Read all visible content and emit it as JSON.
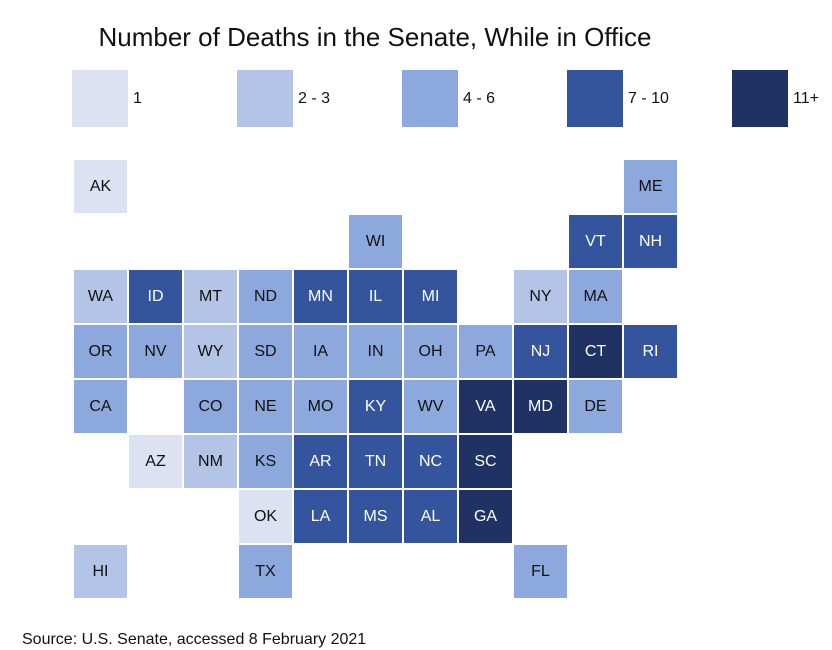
{
  "title": "Number of Deaths in the Senate, While in Office",
  "source": "Source: U.S. Senate, accessed 8 February 2021",
  "legend": [
    {
      "label": "1",
      "color": "#dde2f3"
    },
    {
      "label": "2 - 3",
      "color": "#b3c4e6"
    },
    {
      "label": "4 - 6",
      "color": "#8da8dc"
    },
    {
      "label": "7 - 10",
      "color": "#34559e"
    },
    {
      "label": "11+",
      "color": "#1f3263"
    }
  ],
  "states": [
    {
      "abbr": "AK",
      "bin": 0
    },
    {
      "abbr": "ME",
      "bin": 2
    },
    {
      "abbr": "WI",
      "bin": 2
    },
    {
      "abbr": "VT",
      "bin": 3
    },
    {
      "abbr": "NH",
      "bin": 3
    },
    {
      "abbr": "WA",
      "bin": 1
    },
    {
      "abbr": "ID",
      "bin": 3
    },
    {
      "abbr": "MT",
      "bin": 1
    },
    {
      "abbr": "ND",
      "bin": 2
    },
    {
      "abbr": "MN",
      "bin": 3
    },
    {
      "abbr": "IL",
      "bin": 3
    },
    {
      "abbr": "MI",
      "bin": 3
    },
    {
      "abbr": "NY",
      "bin": 1
    },
    {
      "abbr": "MA",
      "bin": 2
    },
    {
      "abbr": "OR",
      "bin": 2
    },
    {
      "abbr": "NV",
      "bin": 2
    },
    {
      "abbr": "WY",
      "bin": 1
    },
    {
      "abbr": "SD",
      "bin": 2
    },
    {
      "abbr": "IA",
      "bin": 2
    },
    {
      "abbr": "IN",
      "bin": 2
    },
    {
      "abbr": "OH",
      "bin": 2
    },
    {
      "abbr": "PA",
      "bin": 2
    },
    {
      "abbr": "NJ",
      "bin": 3
    },
    {
      "abbr": "CT",
      "bin": 4
    },
    {
      "abbr": "RI",
      "bin": 3
    },
    {
      "abbr": "CA",
      "bin": 2
    },
    {
      "abbr": "CO",
      "bin": 2
    },
    {
      "abbr": "NE",
      "bin": 2
    },
    {
      "abbr": "MO",
      "bin": 2
    },
    {
      "abbr": "KY",
      "bin": 3
    },
    {
      "abbr": "WV",
      "bin": 2
    },
    {
      "abbr": "VA",
      "bin": 4
    },
    {
      "abbr": "MD",
      "bin": 4
    },
    {
      "abbr": "DE",
      "bin": 2
    },
    {
      "abbr": "AZ",
      "bin": 0
    },
    {
      "abbr": "NM",
      "bin": 1
    },
    {
      "abbr": "KS",
      "bin": 2
    },
    {
      "abbr": "AR",
      "bin": 3
    },
    {
      "abbr": "TN",
      "bin": 3
    },
    {
      "abbr": "NC",
      "bin": 3
    },
    {
      "abbr": "SC",
      "bin": 4
    },
    {
      "abbr": "OK",
      "bin": 0
    },
    {
      "abbr": "LA",
      "bin": 3
    },
    {
      "abbr": "MS",
      "bin": 3
    },
    {
      "abbr": "AL",
      "bin": 3
    },
    {
      "abbr": "GA",
      "bin": 4
    },
    {
      "abbr": "HI",
      "bin": 1
    },
    {
      "abbr": "TX",
      "bin": 2
    },
    {
      "abbr": "FL",
      "bin": 2
    }
  ]
}
